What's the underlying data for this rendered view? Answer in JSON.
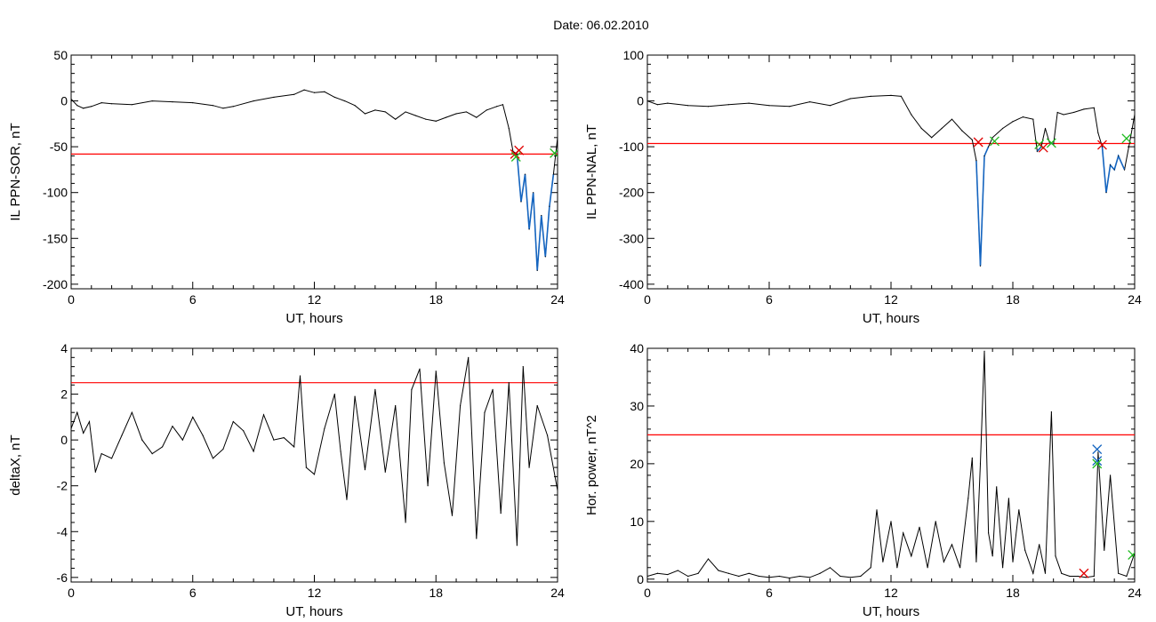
{
  "figure": {
    "title": "Date:  06.02.2010"
  },
  "colors": {
    "trace": "#000000",
    "threshold": "#ff0000",
    "highlight": "#1565c0",
    "marker_red": "#e00000",
    "marker_green": "#22bb22",
    "marker_blue": "#1565c0"
  },
  "chart_data": [
    {
      "type": "line",
      "id": "ppn-sor",
      "xlabel": "UT, hours",
      "ylabel": "IL PPN-SOR, nT",
      "xlim": [
        0,
        24
      ],
      "ylim": [
        -205,
        50
      ],
      "xticks": [
        0,
        6,
        12,
        18,
        24
      ],
      "yticks": [
        50,
        0,
        -50,
        -100,
        -150,
        -200
      ],
      "threshold": -58,
      "series": [
        {
          "x": [
            0,
            0.3,
            0.6,
            1,
            1.5,
            2,
            3,
            4,
            5,
            6,
            7,
            7.5,
            8,
            9,
            10,
            11,
            11.5,
            12,
            12.5,
            13,
            13.5,
            14,
            14.5,
            15,
            15.5,
            16,
            16.5,
            17,
            17.5,
            18,
            18.5,
            19,
            19.5,
            20,
            20.5,
            21,
            21.3,
            21.6,
            21.8,
            22,
            22.2,
            22.4,
            22.6,
            22.8,
            23,
            23.2,
            23.4,
            23.6,
            23.8,
            24
          ],
          "y": [
            2,
            -5,
            -8,
            -6,
            -2,
            -3,
            -4,
            0,
            -1,
            -2,
            -5,
            -8,
            -6,
            0,
            4,
            7,
            12,
            9,
            10,
            4,
            0,
            -5,
            -14,
            -10,
            -12,
            -20,
            -12,
            -16,
            -20,
            -22,
            -18,
            -14,
            -12,
            -18,
            -10,
            -6,
            -4,
            -30,
            -55,
            -58,
            -110,
            -80,
            -140,
            -100,
            -185,
            -125,
            -170,
            -115,
            -80,
            -40
          ]
        }
      ],
      "highlight": {
        "x_from": 21.9,
        "x_to": 24
      },
      "markers": [
        {
          "x": 21.9,
          "y": -58,
          "color": "red"
        },
        {
          "x": 22.1,
          "y": -54,
          "color": "red"
        },
        {
          "x": 21.95,
          "y": -61,
          "color": "green"
        },
        {
          "x": 23.85,
          "y": -57,
          "color": "green"
        }
      ]
    },
    {
      "type": "line",
      "id": "ppn-nal",
      "xlabel": "UT, hours",
      "ylabel": "IL PPN-NAL, nT",
      "xlim": [
        0,
        24
      ],
      "ylim": [
        -410,
        100
      ],
      "xticks": [
        0,
        6,
        12,
        18,
        24
      ],
      "yticks": [
        100,
        0,
        -100,
        -200,
        -300,
        -400
      ],
      "threshold": -93,
      "series": [
        {
          "x": [
            0,
            0.5,
            1,
            2,
            3,
            4,
            5,
            6,
            7,
            8,
            9,
            10,
            11,
            12,
            12.5,
            13,
            13.5,
            14,
            14.5,
            15,
            15.5,
            16,
            16.2,
            16.4,
            16.6,
            16.8,
            17,
            17.5,
            18,
            18.5,
            19,
            19.2,
            19.4,
            19.6,
            19.8,
            20,
            20.2,
            20.5,
            21,
            21.5,
            22,
            22.2,
            22.4,
            22.6,
            22.8,
            23,
            23.2,
            23.5,
            23.8,
            24
          ],
          "y": [
            0,
            -8,
            -5,
            -10,
            -12,
            -8,
            -5,
            -10,
            -12,
            -2,
            -10,
            5,
            10,
            12,
            10,
            -30,
            -60,
            -80,
            -60,
            -40,
            -65,
            -85,
            -130,
            -360,
            -120,
            -100,
            -80,
            -60,
            -45,
            -35,
            -40,
            -110,
            -100,
            -60,
            -90,
            -95,
            -25,
            -30,
            -25,
            -18,
            -15,
            -70,
            -100,
            -200,
            -140,
            -150,
            -120,
            -150,
            -80,
            -30
          ]
        }
      ],
      "highlight": {
        "x_from": 16.2,
        "x_to": 24
      },
      "markers": [
        {
          "x": 16.3,
          "y": -90,
          "color": "red"
        },
        {
          "x": 17.1,
          "y": -88,
          "color": "green"
        },
        {
          "x": 19.3,
          "y": -95,
          "color": "green"
        },
        {
          "x": 19.5,
          "y": -102,
          "color": "red"
        },
        {
          "x": 19.9,
          "y": -92,
          "color": "green"
        },
        {
          "x": 22.4,
          "y": -96,
          "color": "red"
        },
        {
          "x": 23.6,
          "y": -82,
          "color": "green"
        }
      ]
    },
    {
      "type": "line",
      "id": "deltax",
      "xlabel": "UT, hours",
      "ylabel": "deltaX, nT",
      "xlim": [
        0,
        24
      ],
      "ylim": [
        -6.2,
        4
      ],
      "xticks": [
        0,
        6,
        12,
        18,
        24
      ],
      "yticks": [
        4,
        2,
        0,
        -2,
        -4,
        -6
      ],
      "threshold": 2.5,
      "series": [
        {
          "x": [
            0,
            0.3,
            0.6,
            0.9,
            1.2,
            1.5,
            2,
            2.5,
            3,
            3.5,
            4,
            4.5,
            5,
            5.5,
            6,
            6.5,
            7,
            7.5,
            8,
            8.5,
            9,
            9.5,
            10,
            10.5,
            11,
            11.3,
            11.6,
            12,
            12.5,
            13,
            13.3,
            13.6,
            14,
            14.5,
            15,
            15.5,
            16,
            16.5,
            16.8,
            17.2,
            17.6,
            18,
            18.4,
            18.8,
            19.2,
            19.6,
            20,
            20.4,
            20.8,
            21.2,
            21.6,
            22,
            22.3,
            22.6,
            23,
            23.5,
            24
          ],
          "y": [
            0.5,
            1.2,
            0.3,
            0.8,
            -1.4,
            -0.6,
            -0.8,
            0.2,
            1.2,
            0.0,
            -0.6,
            -0.3,
            0.6,
            0.0,
            1.0,
            0.2,
            -0.8,
            -0.4,
            0.8,
            0.4,
            -0.5,
            1.1,
            0.0,
            0.1,
            -0.3,
            2.8,
            -1.2,
            -1.5,
            0.5,
            2.0,
            -0.5,
            -2.6,
            1.9,
            -1.3,
            2.2,
            -1.4,
            1.5,
            -3.6,
            2.2,
            3.1,
            -2.0,
            3.0,
            -1.0,
            -3.3,
            1.5,
            3.6,
            -4.3,
            1.2,
            2.2,
            -3.2,
            2.5,
            -4.6,
            3.2,
            -1.2,
            1.5,
            0.2,
            -2.2
          ]
        }
      ],
      "markers": []
    },
    {
      "type": "line",
      "id": "hor-power",
      "xlabel": "UT, hours",
      "ylabel": "Hor. power, nT^2",
      "xlim": [
        0,
        24
      ],
      "ylim": [
        -0.5,
        40
      ],
      "xticks": [
        0,
        6,
        12,
        18,
        24
      ],
      "yticks": [
        40,
        30,
        20,
        10,
        0
      ],
      "threshold": 25,
      "series": [
        {
          "x": [
            0,
            0.5,
            1,
            1.5,
            2,
            2.5,
            3,
            3.5,
            4,
            4.5,
            5,
            5.5,
            6,
            6.5,
            7,
            7.5,
            8,
            8.5,
            9,
            9.5,
            10,
            10.5,
            11,
            11.3,
            11.6,
            12,
            12.3,
            12.6,
            13,
            13.4,
            13.8,
            14.2,
            14.6,
            15,
            15.4,
            15.8,
            16,
            16.2,
            16.4,
            16.6,
            16.8,
            17,
            17.2,
            17.5,
            17.8,
            18,
            18.3,
            18.6,
            19,
            19.3,
            19.6,
            19.9,
            20.1,
            20.4,
            20.8,
            21.2,
            21.6,
            22,
            22.2,
            22.5,
            22.8,
            23.2,
            23.6,
            24
          ],
          "y": [
            0.5,
            1,
            0.8,
            1.5,
            0.5,
            1,
            3.5,
            1.5,
            1,
            0.5,
            1,
            0.5,
            0.3,
            0.5,
            0.2,
            0.5,
            0.3,
            1,
            2,
            0.5,
            0.3,
            0.5,
            2,
            12,
            3,
            10,
            2,
            8,
            4,
            9,
            2,
            10,
            3,
            6,
            2,
            14,
            21,
            3,
            20,
            39.5,
            8,
            4,
            16,
            2,
            14,
            3,
            12,
            5,
            1,
            6,
            1,
            29,
            4,
            1,
            0.5,
            0.5,
            0.3,
            0.5,
            22,
            5,
            18,
            1,
            0.5,
            4.5
          ]
        }
      ],
      "markers": [
        {
          "x": 21.5,
          "y": 1,
          "color": "red"
        },
        {
          "x": 22.15,
          "y": 22.5,
          "color": "blue"
        },
        {
          "x": 22.15,
          "y": 20.5,
          "color": "blue"
        },
        {
          "x": 22.15,
          "y": 20,
          "color": "green"
        },
        {
          "x": 23.9,
          "y": 4.2,
          "color": "green"
        }
      ]
    }
  ]
}
